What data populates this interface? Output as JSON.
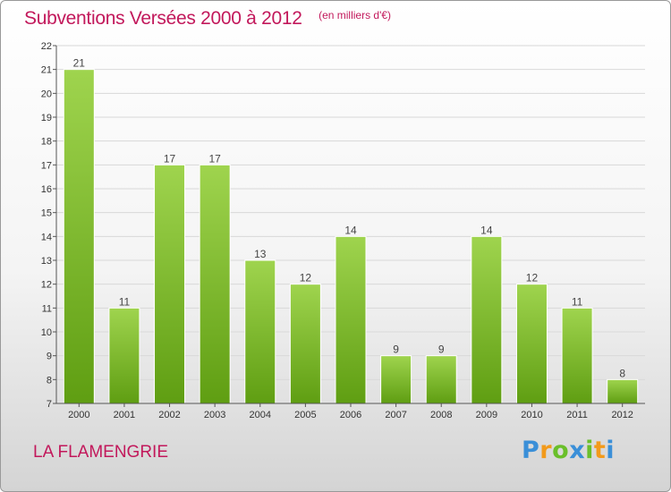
{
  "title": "Subventions Versées 2000 à 2012",
  "subtitle": "(en milliers d'€)",
  "commune": "LA FLAMENGRIE",
  "logo": {
    "text": "Proxiti",
    "letters": [
      {
        "ch": "P",
        "color": "#3a8fd8"
      },
      {
        "ch": "r",
        "color": "#f29a1b"
      },
      {
        "ch": "o",
        "color": "#6abf2a"
      },
      {
        "ch": "x",
        "color": "#3a8fd8"
      },
      {
        "ch": "i",
        "color": "#6abf2a"
      },
      {
        "ch": "t",
        "color": "#f29a1b"
      },
      {
        "ch": "i",
        "color": "#3a8fd8"
      }
    ]
  },
  "colors": {
    "accent": "#c2185b",
    "bar_top": "#9fd44e",
    "bar_bottom": "#5f9e12",
    "grid": "#d8d8d8"
  },
  "chart_data": {
    "type": "bar",
    "title": "Subventions Versées 2000 à 2012",
    "subtitle": "(en milliers d'€)",
    "xlabel": "",
    "ylabel": "",
    "categories": [
      "2000",
      "2001",
      "2002",
      "2003",
      "2004",
      "2005",
      "2006",
      "2007",
      "2008",
      "2009",
      "2010",
      "2011",
      "2012"
    ],
    "values": [
      21,
      11,
      17,
      17,
      13,
      12,
      14,
      9,
      9,
      14,
      12,
      11,
      8
    ],
    "ylim": [
      7,
      22
    ],
    "yticks": [
      7,
      8,
      9,
      10,
      11,
      12,
      13,
      14,
      15,
      16,
      17,
      18,
      19,
      20,
      21,
      22
    ],
    "grid": true,
    "data_labels": true
  }
}
